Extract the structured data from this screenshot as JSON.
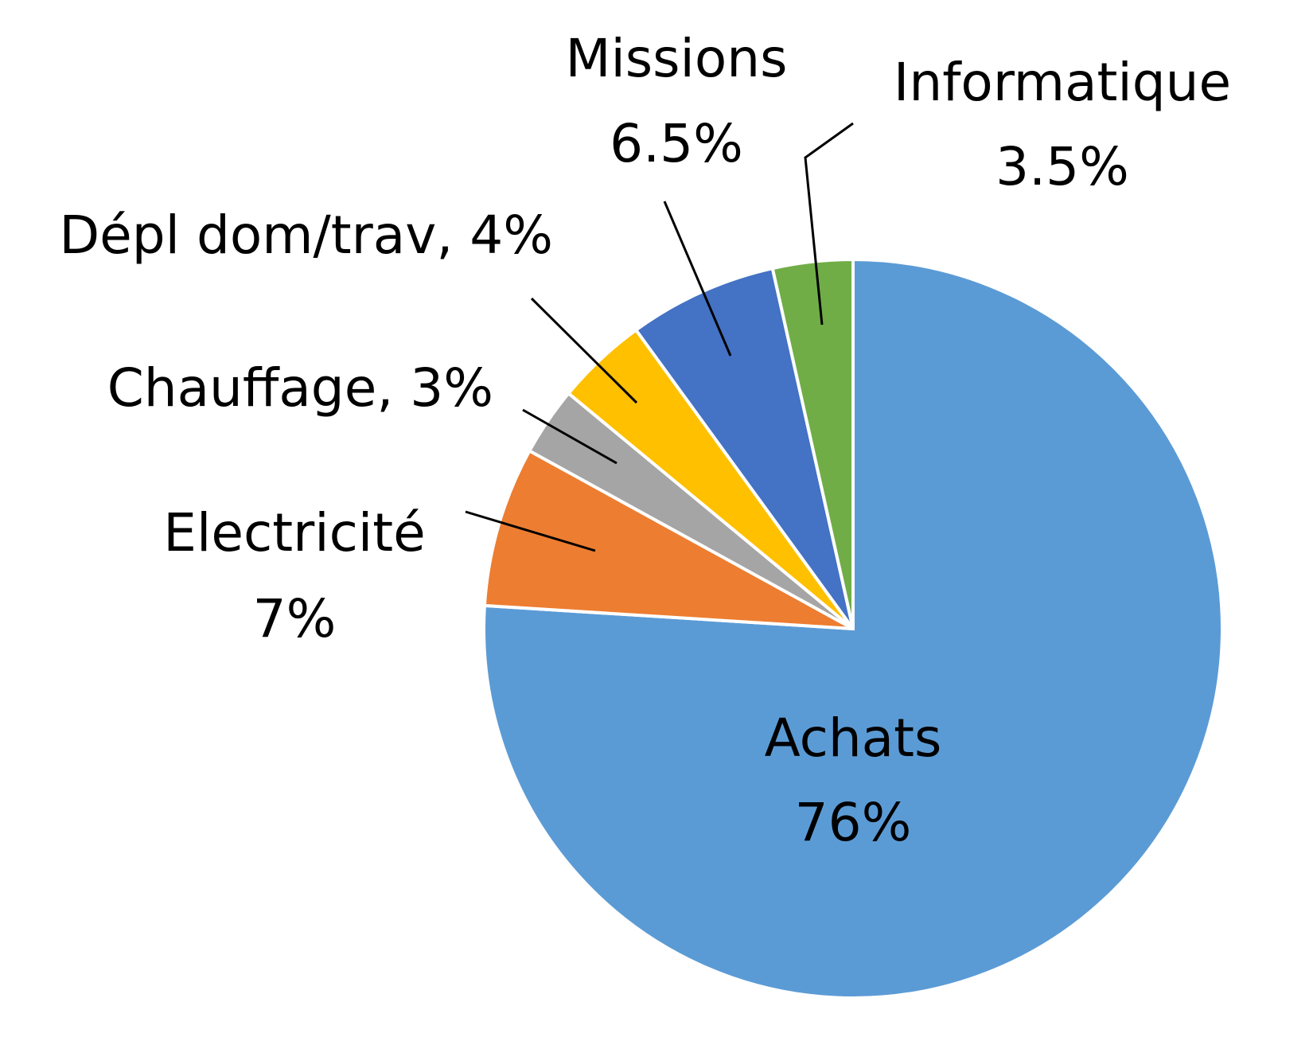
{
  "chart_data": {
    "type": "pie",
    "categories": [
      "Achats",
      "Electricité",
      "Chauffage",
      "Dépl dom/trav",
      "Missions",
      "Informatique"
    ],
    "values": [
      76,
      7,
      3,
      4,
      6.5,
      3.5
    ],
    "value_labels": [
      "76%",
      "7%",
      "3%",
      "4%",
      "6.5%",
      "3.5%"
    ],
    "label_separator": ", ",
    "colors": [
      "#5b9bd5",
      "#ed7d31",
      "#a5a5a5",
      "#ffc000",
      "#4472c4",
      "#70ad47"
    ]
  }
}
